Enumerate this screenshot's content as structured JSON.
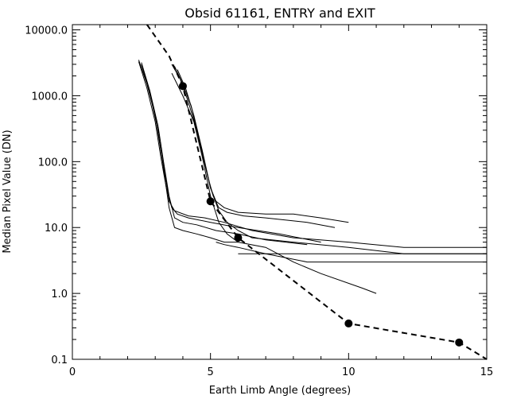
{
  "chart_data": {
    "type": "line",
    "title": "Obsid 61161, ENTRY and EXIT",
    "xlabel": "Earth Limb Angle (degrees)",
    "ylabel": "Median Pixel Value (DN)",
    "xlim": [
      0,
      15
    ],
    "ylim": [
      0.1,
      12000
    ],
    "yscale": "log",
    "grid": false,
    "legend": "none",
    "x_ticks": [
      {
        "value": 0,
        "label": "0"
      },
      {
        "value": 5,
        "label": "5"
      },
      {
        "value": 10,
        "label": "10"
      },
      {
        "value": 15,
        "label": "15"
      }
    ],
    "y_ticks": [
      {
        "value": 10000,
        "label": "10000.0"
      },
      {
        "value": 1000,
        "label": "1000.0"
      },
      {
        "value": 100,
        "label": "100.0"
      },
      {
        "value": 10,
        "label": "10.0"
      },
      {
        "value": 1,
        "label": "1.0"
      },
      {
        "value": 0.1,
        "label": "0.1"
      }
    ],
    "series": [
      {
        "style": "solid",
        "x": [
          2.4,
          2.7,
          3.0,
          3.2,
          3.4,
          3.5,
          3.7,
          4.2,
          4.8,
          5.5,
          6.5,
          8,
          10,
          12,
          15
        ],
        "y": [
          3500,
          1500,
          500,
          150,
          50,
          25,
          18,
          15,
          14,
          12,
          9,
          7,
          6,
          5,
          5
        ]
      },
      {
        "style": "solid",
        "x": [
          2.4,
          2.7,
          3.0,
          3.2,
          3.4,
          3.6,
          3.8,
          4.2,
          5.0,
          6.0,
          7.5,
          9
        ],
        "y": [
          3300,
          1300,
          400,
          120,
          40,
          20,
          16,
          14,
          12,
          10,
          8,
          6
        ]
      },
      {
        "style": "solid",
        "x": [
          2.5,
          2.8,
          3.1,
          3.3,
          3.5,
          3.7,
          4.0,
          4.5,
          5.2,
          6.0,
          7.0,
          8.5
        ],
        "y": [
          3200,
          1200,
          350,
          100,
          30,
          14,
          12,
          11,
          9,
          8,
          6.5,
          5.5
        ]
      },
      {
        "style": "solid",
        "x": [
          2.5,
          2.8,
          3.1,
          3.3,
          3.5,
          3.7,
          4.0,
          4.5,
          5.0,
          5.5,
          6.0
        ],
        "y": [
          3000,
          1100,
          300,
          80,
          20,
          10,
          9,
          8,
          7,
          6,
          6
        ]
      },
      {
        "style": "solid",
        "x": [
          3.6,
          3.9,
          4.2,
          4.5,
          4.8,
          5.0,
          5.2,
          5.5,
          6.0,
          7.0,
          8.0,
          9.0,
          10.0
        ],
        "y": [
          3000,
          1800,
          800,
          300,
          90,
          40,
          25,
          20,
          17,
          16,
          16,
          14,
          12
        ]
      },
      {
        "style": "solid",
        "x": [
          3.7,
          4.0,
          4.3,
          4.6,
          4.9,
          5.1,
          5.3,
          5.6,
          6.2,
          7.0,
          8.5,
          9.5
        ],
        "y": [
          2800,
          1500,
          700,
          200,
          60,
          30,
          20,
          17,
          15,
          14,
          12,
          10
        ]
      },
      {
        "style": "solid",
        "x": [
          3.8,
          4.1,
          4.4,
          4.7,
          5.0,
          5.3,
          5.6,
          6.0,
          6.5,
          8.0,
          10,
          12,
          15
        ],
        "y": [
          2500,
          1300,
          500,
          150,
          40,
          18,
          12,
          9,
          7,
          6,
          5,
          4,
          4
        ]
      },
      {
        "style": "solid",
        "x": [
          3.6,
          4.0,
          4.4,
          4.7,
          5.0,
          5.3,
          5.6,
          6.0,
          7.0,
          8.0,
          9.0,
          10.5,
          11.0
        ],
        "y": [
          2200,
          1000,
          400,
          120,
          30,
          12,
          8,
          6,
          5,
          3,
          2,
          1.2,
          1
        ]
      },
      {
        "style": "solid",
        "x": [
          6.0,
          8.0,
          10.0,
          12.0,
          15.0
        ],
        "y": [
          4,
          4,
          4,
          4,
          4
        ]
      },
      {
        "style": "solid",
        "x": [
          5.2,
          5.5,
          6.0,
          7.0,
          8.5,
          10.0,
          12.0,
          15.0
        ],
        "y": [
          6,
          5.5,
          5,
          4,
          3,
          3,
          3,
          3
        ]
      },
      {
        "style": "dashed",
        "markers": "filled-circle",
        "x": [
          2.7,
          3.5,
          4,
          5,
          6,
          10,
          14,
          15
        ],
        "y": [
          12000,
          4000,
          1400,
          25,
          7,
          0.35,
          0.18,
          0.1
        ]
      }
    ],
    "markers": [
      {
        "x": 4,
        "y": 1400
      },
      {
        "x": 5,
        "y": 25
      },
      {
        "x": 6,
        "y": 7
      },
      {
        "x": 10,
        "y": 0.35
      },
      {
        "x": 14,
        "y": 0.18
      }
    ]
  }
}
